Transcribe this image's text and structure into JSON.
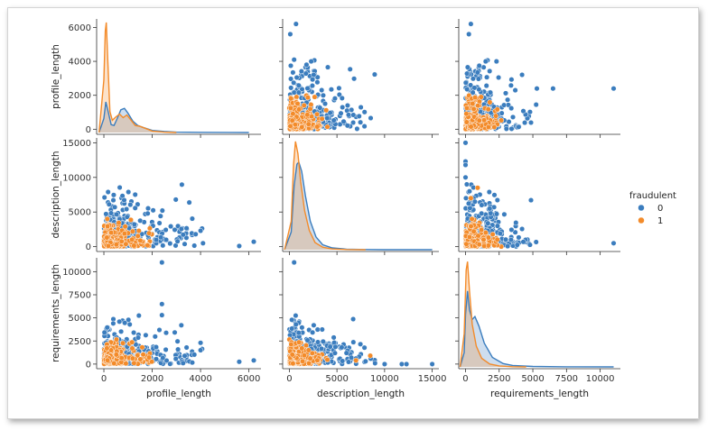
{
  "colors": {
    "class_0": "#3b7dbe",
    "class_1": "#f38b2a",
    "axis": "#333333"
  },
  "legend": {
    "title": "fraudulent",
    "placement": "right",
    "items": [
      "0",
      "1"
    ]
  },
  "chart_data": {
    "type": "pairplot",
    "variables": [
      "profile_length",
      "description_length",
      "requirements_length"
    ],
    "hue": "fraudulent",
    "hue_levels": [
      "0",
      "1"
    ],
    "axis_ranges": {
      "profile_length": [
        -300,
        6500
      ],
      "description_length": [
        -700,
        15700
      ],
      "requirements_length": [
        -500,
        11500
      ]
    },
    "diag_max": [
      6500,
      15700,
      11500
    ],
    "axis_ticks": {
      "profile_length": [
        0,
        2000,
        4000,
        6000
      ],
      "description_length": [
        0,
        5000,
        10000,
        15000
      ],
      "requirements_length": [
        0,
        2500,
        5000,
        7500,
        10000
      ]
    },
    "diagonal_kde": {
      "profile_length": {
        "0": [
          [
            -200,
            0
          ],
          [
            0,
            800
          ],
          [
            80,
            1750
          ],
          [
            160,
            1300
          ],
          [
            300,
            450
          ],
          [
            420,
            400
          ],
          [
            550,
            800
          ],
          [
            700,
            1300
          ],
          [
            850,
            1380
          ],
          [
            1000,
            1100
          ],
          [
            1200,
            650
          ],
          [
            1400,
            400
          ],
          [
            1600,
            300
          ],
          [
            2000,
            120
          ],
          [
            2500,
            60
          ],
          [
            3000,
            20
          ],
          [
            4000,
            10
          ],
          [
            6000,
            0
          ]
        ],
        "1": [
          [
            -200,
            0
          ],
          [
            0,
            3000
          ],
          [
            60,
            5800
          ],
          [
            100,
            6300
          ],
          [
            160,
            4200
          ],
          [
            250,
            1200
          ],
          [
            350,
            700
          ],
          [
            500,
            900
          ],
          [
            650,
            1050
          ],
          [
            800,
            850
          ],
          [
            950,
            1000
          ],
          [
            1100,
            750
          ],
          [
            1300,
            400
          ],
          [
            1500,
            350
          ],
          [
            1700,
            250
          ],
          [
            2000,
            80
          ],
          [
            2500,
            20
          ],
          [
            3000,
            0
          ]
        ]
      },
      "description_length": {
        "0": [
          [
            -500,
            0
          ],
          [
            200,
            2500
          ],
          [
            500,
            9000
          ],
          [
            800,
            12000
          ],
          [
            1000,
            12300
          ],
          [
            1300,
            11000
          ],
          [
            1700,
            7500
          ],
          [
            2200,
            4000
          ],
          [
            2800,
            1800
          ],
          [
            3500,
            700
          ],
          [
            4500,
            250
          ],
          [
            6000,
            80
          ],
          [
            8000,
            20
          ],
          [
            10000,
            5
          ],
          [
            15000,
            0
          ]
        ],
        "1": [
          [
            -500,
            0
          ],
          [
            200,
            4000
          ],
          [
            450,
            12000
          ],
          [
            650,
            15200
          ],
          [
            900,
            13500
          ],
          [
            1200,
            9500
          ],
          [
            1600,
            5500
          ],
          [
            2100,
            2700
          ],
          [
            2700,
            1000
          ],
          [
            3500,
            350
          ],
          [
            4500,
            100
          ],
          [
            6000,
            30
          ],
          [
            8000,
            0
          ]
        ]
      },
      "requirements_length": {
        "0": [
          [
            -400,
            0
          ],
          [
            -100,
            1500
          ],
          [
            0,
            5500
          ],
          [
            150,
            8000
          ],
          [
            300,
            6000
          ],
          [
            500,
            5000
          ],
          [
            700,
            5300
          ],
          [
            1000,
            4300
          ],
          [
            1400,
            2500
          ],
          [
            2000,
            1000
          ],
          [
            2800,
            350
          ],
          [
            3500,
            150
          ],
          [
            5000,
            50
          ],
          [
            7500,
            10
          ],
          [
            11000,
            0
          ]
        ],
        "1": [
          [
            -400,
            0
          ],
          [
            -100,
            3500
          ],
          [
            50,
            10200
          ],
          [
            150,
            11100
          ],
          [
            300,
            8000
          ],
          [
            500,
            4500
          ],
          [
            800,
            2200
          ],
          [
            1200,
            900
          ],
          [
            1800,
            300
          ],
          [
            2500,
            100
          ],
          [
            3500,
            20
          ],
          [
            4500,
            0
          ]
        ]
      }
    },
    "scatter_outliers": {
      "profile_length|description_length": {
        "0": [
          [
            6200,
            700
          ],
          [
            5600,
            100
          ],
          [
            4000,
            2300
          ],
          [
            3800,
            1800
          ],
          [
            4100,
            500
          ]
        ],
        "1": []
      },
      "profile_length|requirements_length": {
        "0": [
          [
            6200,
            400
          ],
          [
            5600,
            250
          ],
          [
            2400,
            11000
          ],
          [
            2400,
            6500
          ],
          [
            2400,
            5300
          ],
          [
            4000,
            2300
          ],
          [
            4000,
            1500
          ]
        ],
        "1": []
      },
      "description_length|requirements_length": {
        "0": [
          [
            500,
            11000
          ],
          [
            15000,
            0
          ],
          [
            12300,
            0
          ],
          [
            11800,
            0
          ],
          [
            10000,
            0
          ],
          [
            9000,
            100
          ],
          [
            8000,
            300
          ],
          [
            7000,
            600
          ],
          [
            6500,
            700
          ],
          [
            5500,
            1800
          ],
          [
            6000,
            1200
          ]
        ],
        "1": [
          [
            8500,
            900
          ],
          [
            7000,
            400
          ]
        ]
      }
    },
    "scatter_density": {
      "note": "dense point clouds; class 1 concentrated near origin",
      "profile_length": {
        "0": 4200,
        "1": 2100
      },
      "description_length": {
        "0": 9000,
        "1": 4200
      },
      "requirements_length": {
        "0": 5300,
        "1": 2900
      }
    }
  }
}
